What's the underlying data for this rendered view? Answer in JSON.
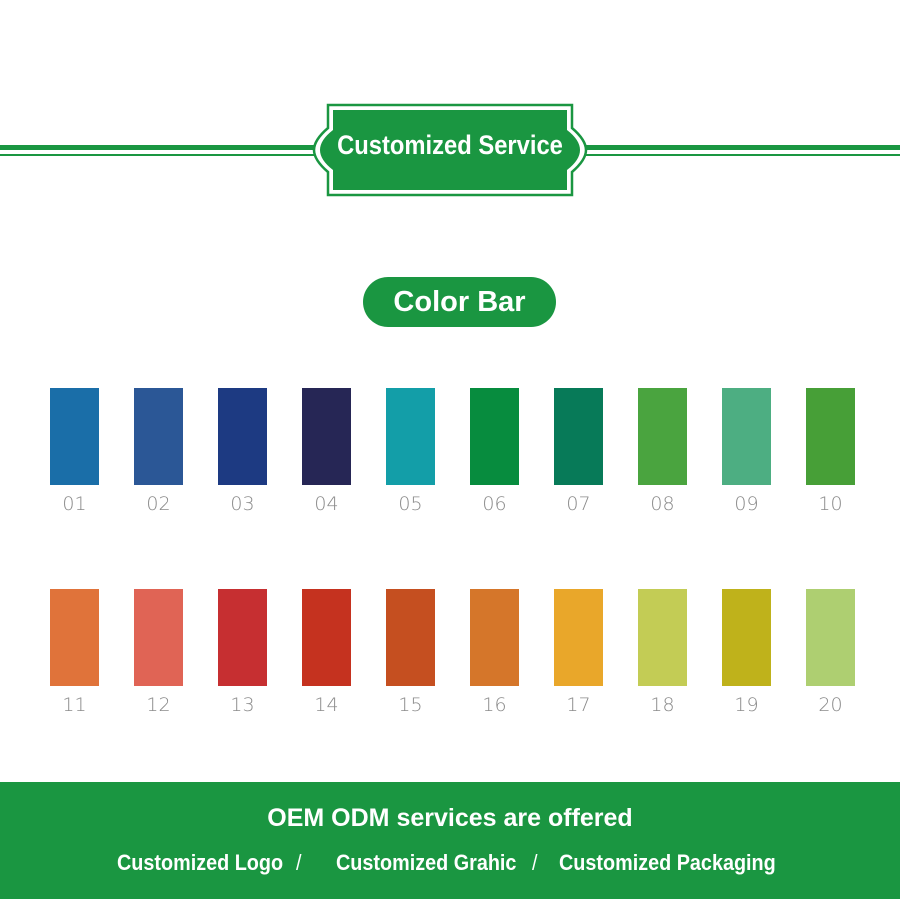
{
  "header": {
    "title": "Customized Service"
  },
  "section": {
    "title": "Color Bar"
  },
  "swatches": [
    {
      "label": "01",
      "color": "#1a6ea8"
    },
    {
      "label": "02",
      "color": "#2b5796"
    },
    {
      "label": "03",
      "color": "#1d3a82"
    },
    {
      "label": "04",
      "color": "#262655"
    },
    {
      "label": "05",
      "color": "#139ea8"
    },
    {
      "label": "06",
      "color": "#078c3e"
    },
    {
      "label": "07",
      "color": "#077a58"
    },
    {
      "label": "08",
      "color": "#4aa43f"
    },
    {
      "label": "09",
      "color": "#4dae82"
    },
    {
      "label": "10",
      "color": "#479f37"
    },
    {
      "label": "11",
      "color": "#e0733a"
    },
    {
      "label": "12",
      "color": "#e06455"
    },
    {
      "label": "13",
      "color": "#c62f31"
    },
    {
      "label": "14",
      "color": "#c5321f"
    },
    {
      "label": "15",
      "color": "#c54f20"
    },
    {
      "label": "16",
      "color": "#d5762a"
    },
    {
      "label": "17",
      "color": "#e9a72a"
    },
    {
      "label": "18",
      "color": "#c3cc55"
    },
    {
      "label": "19",
      "color": "#bfb21b"
    },
    {
      "label": "20",
      "color": "#aecf71"
    }
  ],
  "banner": {
    "headline": "OEM ODM services are offered",
    "items": [
      "Customized Logo",
      "Customized Grahic",
      "Customized Packaging"
    ],
    "separator": "/"
  },
  "colors": {
    "brand_green": "#1a9641"
  }
}
